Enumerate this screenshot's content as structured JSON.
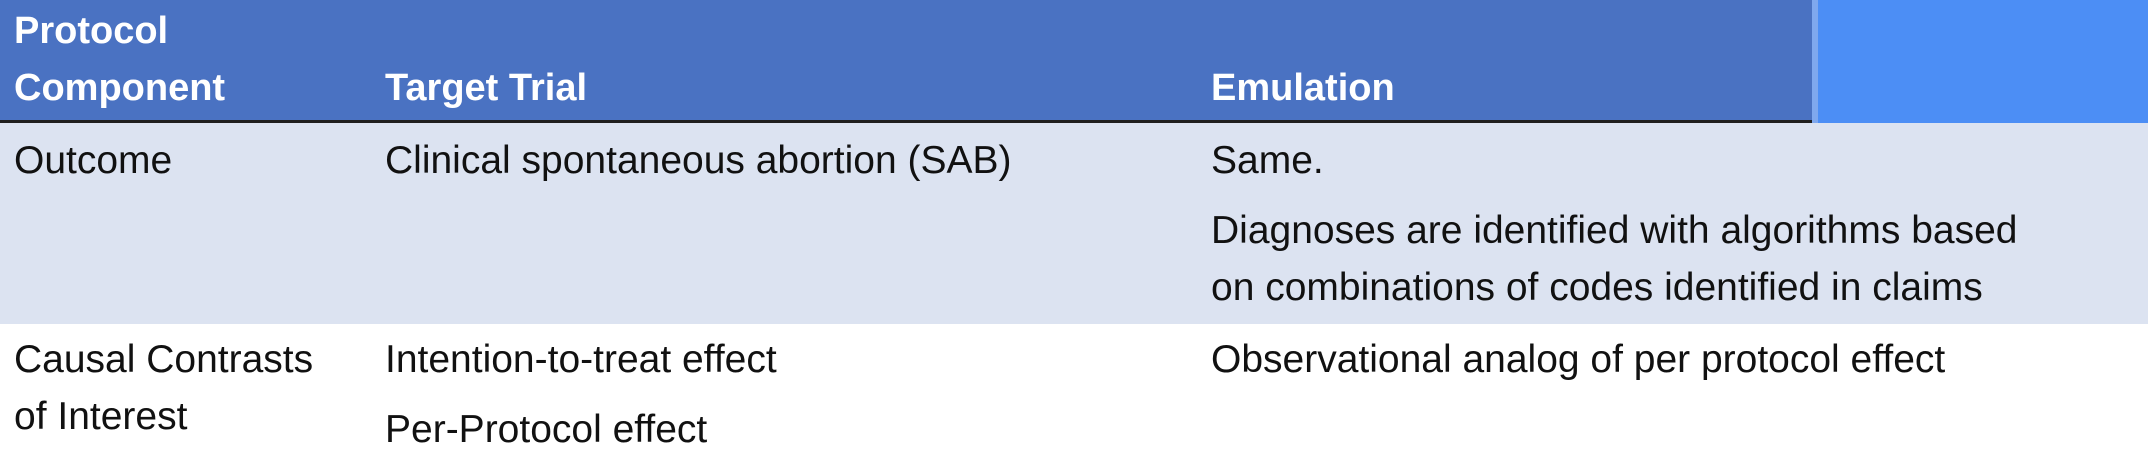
{
  "table": {
    "headers": {
      "component_line1": "Protocol",
      "component_line2": "Component",
      "target": "Target Trial",
      "emulation": "Emulation"
    },
    "rows": [
      {
        "component_line1": "Outcome",
        "component_line2": "",
        "target_lines": [
          "Clinical spontaneous abortion (SAB)"
        ],
        "emulation_lines": [
          "Same.",
          "Diagnoses are identified with algorithms based",
          "on combinations of codes identified in claims"
        ]
      },
      {
        "component_line1": "Causal Contrasts",
        "component_line2": "of Interest",
        "target_lines": [
          "Intention-to-treat effect",
          "Per-Protocol effect"
        ],
        "emulation_lines": [
          "Observational analog of per protocol effect"
        ]
      }
    ]
  },
  "colors": {
    "header_bg": "#4a72c2",
    "header_accent": "#4c8ef5",
    "band_row_bg": "#dce3f1",
    "header_text": "#ffffff",
    "body_text": "#111111"
  }
}
